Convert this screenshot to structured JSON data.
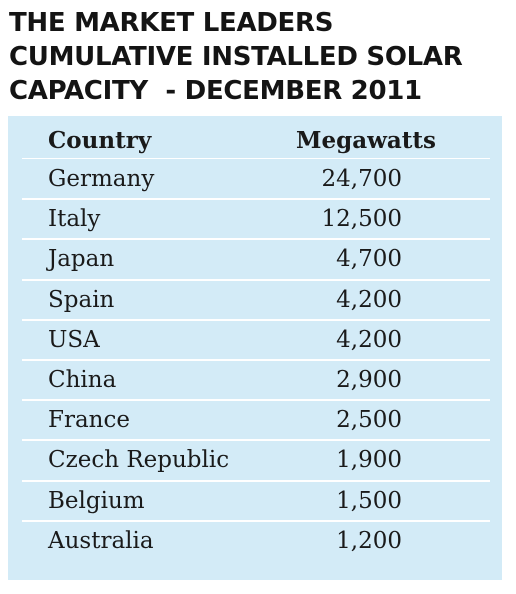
{
  "heading": {
    "lines": [
      "THE MARKET LEADERS",
      "CUMULATIVE INSTALLED SOLAR",
      "CAPACITY  - DECEMBER 2011"
    ]
  },
  "table": {
    "columns": [
      "Country",
      "Megawatts"
    ],
    "rows": [
      {
        "country": "Germany",
        "megawatts": "24,700"
      },
      {
        "country": "Italy",
        "megawatts": "12,500"
      },
      {
        "country": "Japan",
        "megawatts": "4,700"
      },
      {
        "country": "Spain",
        "megawatts": "4,200"
      },
      {
        "country": "USA",
        "megawatts": "4,200"
      },
      {
        "country": "China",
        "megawatts": "2,900"
      },
      {
        "country": "France",
        "megawatts": "2,500"
      },
      {
        "country": "Czech Republic",
        "megawatts": "1,900"
      },
      {
        "country": "Belgium",
        "megawatts": "1,500"
      },
      {
        "country": "Australia",
        "megawatts": "1,200"
      }
    ]
  },
  "colors": {
    "panel_background": "#d3ebf7",
    "row_divider": "#ffffff",
    "text": "#1a1a1a"
  }
}
